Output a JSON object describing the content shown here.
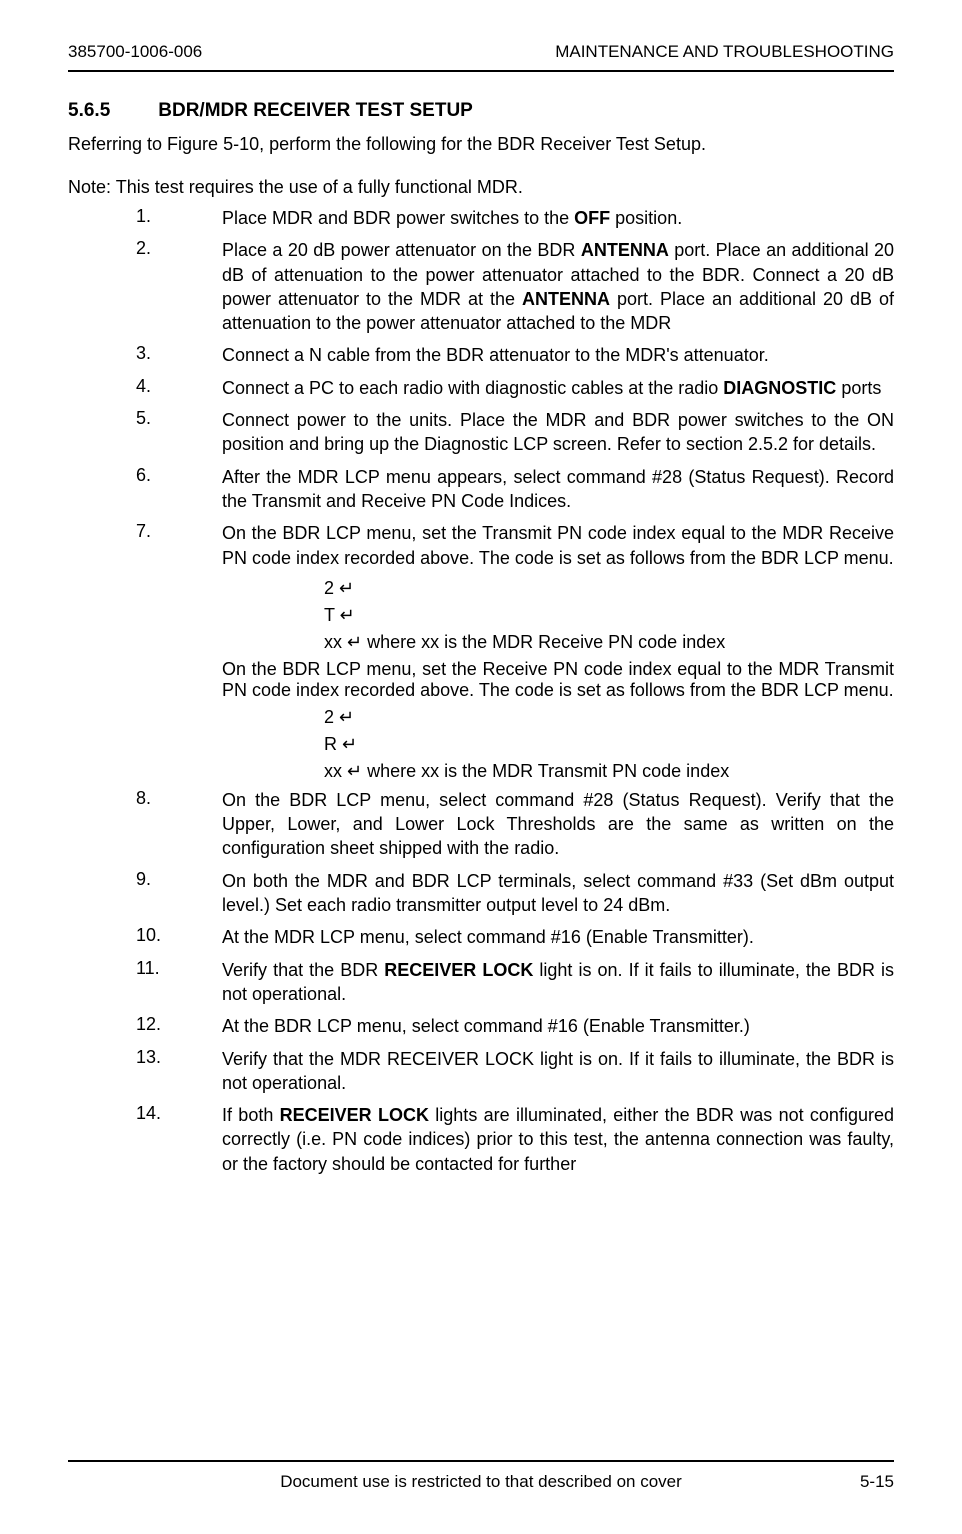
{
  "header": {
    "left": "385700-1006-006",
    "right": "MAINTENANCE AND TROUBLESHOOTING"
  },
  "section": {
    "number": "5.6.5",
    "title": "BDR/MDR RECEIVER TEST SETUP"
  },
  "intro": "Referring to Figure 5-10, perform the following for the BDR Receiver Test Setup.",
  "note": "Note:  This test requires the use of a fully functional MDR.",
  "items": {
    "n1": "1.",
    "t1_pre": "Place MDR and BDR power switches to the ",
    "t1_bold": "OFF",
    "t1_post": " position.",
    "n2": "2.",
    "t2_pre": "Place a 20 dB power attenuator on the BDR ",
    "t2_bold1": "ANTENNA",
    "t2_mid": " port.  Place an additional 20 dB of attenuation to the power attenuator attached to the BDR.  Connect a 20 dB power attenuator to the MDR at the ",
    "t2_bold2": "ANTENNA",
    "t2_post": " port.  Place an additional 20 dB of attenuation to the power attenuator attached to the MDR",
    "n3": "3.",
    "t3": "Connect a N cable from the BDR attenuator to the MDR's attenuator.",
    "n4": "4.",
    "t4_pre": "Connect a PC to each radio with diagnostic cables at the radio ",
    "t4_bold": "DIAGNOSTIC",
    "t4_post": " ports",
    "n5": "5.",
    "t5": "Connect power to the units.  Place the MDR and BDR power switches to the ON position and bring up the Diagnostic LCP screen.  Refer to section 2.5.2 for details.",
    "n6": "6.",
    "t6": "After the MDR LCP menu appears, select command #28 (Status Request).  Record the Transmit and Receive PN Code Indices.",
    "n7": "7.",
    "t7a": "On the BDR LCP menu, set the Transmit PN code index equal to the MDR Receive PN code index recorded above.  The code is set as follows from the BDR LCP menu.",
    "t7_s1": "2 ↵",
    "t7_s2": "T ↵",
    "t7_s3": "xx ↵ where xx is the MDR Receive PN code index",
    "t7b": "On the BDR LCP menu, set the Receive PN code index equal to the MDR Transmit PN code index recorded above.  The code is set as follows from the BDR LCP menu.",
    "t7_s4": "2 ↵",
    "t7_s5": "R ↵",
    "t7_s6": "xx ↵ where xx is the MDR Transmit PN code index",
    "n8": "8.",
    "t8": "On the BDR LCP menu, select command #28 (Status Request).  Verify that the Upper, Lower, and Lower Lock Thresholds are the same as written on the configuration sheet shipped with the radio.",
    "n9": "9.",
    "t9": "On both the MDR and BDR LCP terminals, select command #33 (Set dBm output level.)  Set each radio transmitter output level to 24 dBm.",
    "n10": "10.",
    "t10": "At the MDR LCP menu, select command #16 (Enable Transmitter).",
    "n11": "11.",
    "t11_pre": "Verify that the BDR ",
    "t11_bold": "RECEIVER LOCK",
    "t11_post": " light is on.  If it fails to illuminate, the BDR is not operational.",
    "n12": "12.",
    "t12": "At the BDR LCP menu, select command #16 (Enable Transmitter.)",
    "n13": "13.",
    "t13": "Verify that the MDR RECEIVER LOCK light is on.  If it fails to illuminate, the BDR is not operational.",
    "n14": "14.",
    "t14_pre": "If both ",
    "t14_bold": "RECEIVER LOCK",
    "t14_post": " lights are illuminated, either the BDR was not configured correctly (i.e. PN code indices) prior to this test, the antenna connection was faulty, or the factory should be contacted for further"
  },
  "footer": {
    "text": "Document use is restricted to that described on cover",
    "page": "5-15"
  }
}
